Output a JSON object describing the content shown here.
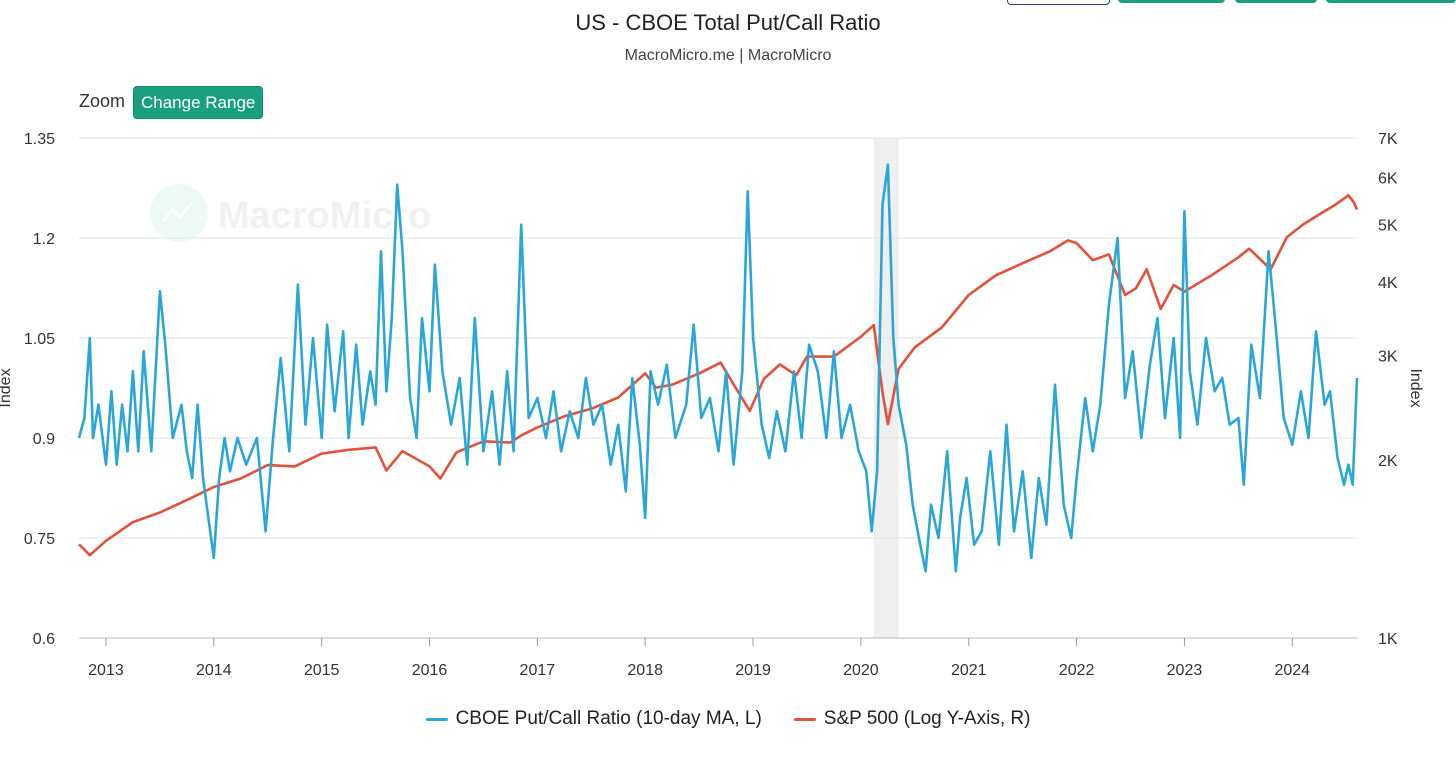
{
  "colors": {
    "putcall": "#2aa7d6",
    "sp500": "#e2513a",
    "accent": "#1aa07f",
    "recession": "#efefef",
    "grid": "#e3e3e3"
  },
  "header": {
    "title": "US - CBOE Total Put/Call Ratio",
    "subtitle": "MacroMicro.me | MacroMicro"
  },
  "toolbar": {
    "zoom_label": "Zoom",
    "change_range_label": "Change Range"
  },
  "watermark": {
    "text": "MacroMicro"
  },
  "chart_data": {
    "type": "line",
    "title": "US - CBOE Total Put/Call Ratio",
    "subtitle": "MacroMicro.me | MacroMicro",
    "xlim": [
      2012.75,
      2024.6
    ],
    "x_ticks": [
      "2013",
      "2014",
      "2015",
      "2016",
      "2017",
      "2018",
      "2019",
      "2020",
      "2021",
      "2022",
      "2023",
      "2024"
    ],
    "y_left": {
      "label": "Index",
      "lim": [
        0.6,
        1.35
      ],
      "ticks": [
        "0.6",
        "0.75",
        "0.9",
        "1.05",
        "1.2",
        "1.35"
      ]
    },
    "y_right": {
      "label": "Index",
      "scale": "log",
      "lim": [
        1000,
        7000
      ],
      "ticks": [
        "1K",
        "2K",
        "3K",
        "4K",
        "5K",
        "6K",
        "7K"
      ]
    },
    "grid": true,
    "legend_position": "bottom-center",
    "shaded_periods": [
      {
        "x0": 2020.12,
        "x1": 2020.35
      }
    ],
    "series": [
      {
        "name": "CBOE Put/Call Ratio (10-day MA, L)",
        "axis": "left",
        "points": [
          [
            2012.75,
            0.9
          ],
          [
            2012.8,
            0.93
          ],
          [
            2012.85,
            1.05
          ],
          [
            2012.88,
            0.9
          ],
          [
            2012.93,
            0.95
          ],
          [
            2013.0,
            0.86
          ],
          [
            2013.05,
            0.97
          ],
          [
            2013.1,
            0.86
          ],
          [
            2013.15,
            0.95
          ],
          [
            2013.2,
            0.88
          ],
          [
            2013.25,
            1.0
          ],
          [
            2013.3,
            0.88
          ],
          [
            2013.35,
            1.03
          ],
          [
            2013.42,
            0.88
          ],
          [
            2013.5,
            1.12
          ],
          [
            2013.55,
            1.04
          ],
          [
            2013.62,
            0.9
          ],
          [
            2013.7,
            0.95
          ],
          [
            2013.75,
            0.88
          ],
          [
            2013.8,
            0.84
          ],
          [
            2013.85,
            0.95
          ],
          [
            2013.9,
            0.84
          ],
          [
            2014.0,
            0.72
          ],
          [
            2014.05,
            0.84
          ],
          [
            2014.1,
            0.9
          ],
          [
            2014.15,
            0.85
          ],
          [
            2014.22,
            0.9
          ],
          [
            2014.3,
            0.86
          ],
          [
            2014.4,
            0.9
          ],
          [
            2014.48,
            0.76
          ],
          [
            2014.55,
            0.9
          ],
          [
            2014.62,
            1.02
          ],
          [
            2014.7,
            0.88
          ],
          [
            2014.78,
            1.13
          ],
          [
            2014.85,
            0.92
          ],
          [
            2014.92,
            1.05
          ],
          [
            2015.0,
            0.9
          ],
          [
            2015.05,
            1.07
          ],
          [
            2015.12,
            0.94
          ],
          [
            2015.2,
            1.06
          ],
          [
            2015.25,
            0.9
          ],
          [
            2015.32,
            1.04
          ],
          [
            2015.38,
            0.92
          ],
          [
            2015.45,
            1.0
          ],
          [
            2015.5,
            0.95
          ],
          [
            2015.55,
            1.18
          ],
          [
            2015.6,
            0.97
          ],
          [
            2015.65,
            1.08
          ],
          [
            2015.7,
            1.28
          ],
          [
            2015.75,
            1.18
          ],
          [
            2015.82,
            0.96
          ],
          [
            2015.88,
            0.9
          ],
          [
            2015.93,
            1.08
          ],
          [
            2016.0,
            0.97
          ],
          [
            2016.05,
            1.16
          ],
          [
            2016.12,
            1.0
          ],
          [
            2016.2,
            0.92
          ],
          [
            2016.28,
            0.99
          ],
          [
            2016.35,
            0.86
          ],
          [
            2016.42,
            1.08
          ],
          [
            2016.5,
            0.88
          ],
          [
            2016.58,
            0.97
          ],
          [
            2016.65,
            0.86
          ],
          [
            2016.72,
            1.0
          ],
          [
            2016.78,
            0.88
          ],
          [
            2016.85,
            1.22
          ],
          [
            2016.92,
            0.93
          ],
          [
            2017.0,
            0.96
          ],
          [
            2017.08,
            0.9
          ],
          [
            2017.15,
            0.97
          ],
          [
            2017.22,
            0.88
          ],
          [
            2017.3,
            0.94
          ],
          [
            2017.38,
            0.9
          ],
          [
            2017.45,
            0.99
          ],
          [
            2017.52,
            0.92
          ],
          [
            2017.6,
            0.95
          ],
          [
            2017.68,
            0.86
          ],
          [
            2017.75,
            0.92
          ],
          [
            2017.82,
            0.82
          ],
          [
            2017.88,
            0.99
          ],
          [
            2017.95,
            0.89
          ],
          [
            2018.0,
            0.78
          ],
          [
            2018.05,
            1.0
          ],
          [
            2018.12,
            0.95
          ],
          [
            2018.2,
            1.01
          ],
          [
            2018.28,
            0.9
          ],
          [
            2018.38,
            0.95
          ],
          [
            2018.45,
            1.07
          ],
          [
            2018.52,
            0.93
          ],
          [
            2018.6,
            0.96
          ],
          [
            2018.68,
            0.88
          ],
          [
            2018.75,
            1.0
          ],
          [
            2018.82,
            0.86
          ],
          [
            2018.9,
            1.0
          ],
          [
            2018.95,
            1.27
          ],
          [
            2019.0,
            1.05
          ],
          [
            2019.08,
            0.92
          ],
          [
            2019.15,
            0.87
          ],
          [
            2019.22,
            0.94
          ],
          [
            2019.3,
            0.88
          ],
          [
            2019.38,
            1.0
          ],
          [
            2019.45,
            0.9
          ],
          [
            2019.52,
            1.04
          ],
          [
            2019.6,
            1.0
          ],
          [
            2019.68,
            0.9
          ],
          [
            2019.75,
            1.03
          ],
          [
            2019.82,
            0.9
          ],
          [
            2019.9,
            0.95
          ],
          [
            2019.98,
            0.88
          ],
          [
            2020.05,
            0.85
          ],
          [
            2020.1,
            0.76
          ],
          [
            2020.15,
            0.85
          ],
          [
            2020.2,
            1.25
          ],
          [
            2020.25,
            1.31
          ],
          [
            2020.3,
            1.05
          ],
          [
            2020.35,
            0.95
          ],
          [
            2020.42,
            0.89
          ],
          [
            2020.48,
            0.8
          ],
          [
            2020.55,
            0.74
          ],
          [
            2020.6,
            0.7
          ],
          [
            2020.65,
            0.8
          ],
          [
            2020.72,
            0.75
          ],
          [
            2020.8,
            0.88
          ],
          [
            2020.88,
            0.7
          ],
          [
            2020.92,
            0.78
          ],
          [
            2020.98,
            0.84
          ],
          [
            2021.05,
            0.74
          ],
          [
            2021.12,
            0.76
          ],
          [
            2021.2,
            0.88
          ],
          [
            2021.28,
            0.74
          ],
          [
            2021.35,
            0.92
          ],
          [
            2021.42,
            0.76
          ],
          [
            2021.5,
            0.85
          ],
          [
            2021.58,
            0.72
          ],
          [
            2021.65,
            0.84
          ],
          [
            2021.72,
            0.77
          ],
          [
            2021.8,
            0.98
          ],
          [
            2021.88,
            0.8
          ],
          [
            2021.95,
            0.75
          ],
          [
            2022.0,
            0.84
          ],
          [
            2022.08,
            0.96
          ],
          [
            2022.15,
            0.88
          ],
          [
            2022.22,
            0.95
          ],
          [
            2022.3,
            1.1
          ],
          [
            2022.38,
            1.2
          ],
          [
            2022.45,
            0.96
          ],
          [
            2022.52,
            1.03
          ],
          [
            2022.6,
            0.9
          ],
          [
            2022.68,
            1.01
          ],
          [
            2022.75,
            1.08
          ],
          [
            2022.82,
            0.93
          ],
          [
            2022.9,
            1.05
          ],
          [
            2022.96,
            0.9
          ],
          [
            2023.0,
            1.24
          ],
          [
            2023.05,
            1.0
          ],
          [
            2023.12,
            0.92
          ],
          [
            2023.2,
            1.05
          ],
          [
            2023.28,
            0.97
          ],
          [
            2023.35,
            0.99
          ],
          [
            2023.42,
            0.92
          ],
          [
            2023.5,
            0.93
          ],
          [
            2023.55,
            0.83
          ],
          [
            2023.62,
            1.04
          ],
          [
            2023.7,
            0.96
          ],
          [
            2023.78,
            1.18
          ],
          [
            2023.85,
            1.06
          ],
          [
            2023.92,
            0.93
          ],
          [
            2024.0,
            0.89
          ],
          [
            2024.08,
            0.97
          ],
          [
            2024.15,
            0.9
          ],
          [
            2024.22,
            1.06
          ],
          [
            2024.3,
            0.95
          ],
          [
            2024.35,
            0.97
          ],
          [
            2024.42,
            0.87
          ],
          [
            2024.48,
            0.83
          ],
          [
            2024.52,
            0.86
          ],
          [
            2024.56,
            0.83
          ],
          [
            2024.6,
            0.99
          ]
        ]
      },
      {
        "name": "S&P 500 (Log Y-Axis, R)",
        "axis": "right",
        "points": [
          [
            2012.75,
            1440
          ],
          [
            2012.85,
            1380
          ],
          [
            2013.0,
            1460
          ],
          [
            2013.25,
            1570
          ],
          [
            2013.5,
            1630
          ],
          [
            2013.75,
            1710
          ],
          [
            2014.0,
            1800
          ],
          [
            2014.25,
            1860
          ],
          [
            2014.5,
            1960
          ],
          [
            2014.75,
            1950
          ],
          [
            2015.0,
            2050
          ],
          [
            2015.25,
            2080
          ],
          [
            2015.5,
            2100
          ],
          [
            2015.6,
            1920
          ],
          [
            2015.75,
            2070
          ],
          [
            2016.0,
            1950
          ],
          [
            2016.1,
            1860
          ],
          [
            2016.25,
            2060
          ],
          [
            2016.5,
            2150
          ],
          [
            2016.75,
            2140
          ],
          [
            2016.85,
            2200
          ],
          [
            2017.0,
            2270
          ],
          [
            2017.25,
            2370
          ],
          [
            2017.5,
            2440
          ],
          [
            2017.75,
            2550
          ],
          [
            2018.0,
            2800
          ],
          [
            2018.1,
            2650
          ],
          [
            2018.25,
            2680
          ],
          [
            2018.5,
            2800
          ],
          [
            2018.7,
            2920
          ],
          [
            2018.8,
            2720
          ],
          [
            2018.97,
            2420
          ],
          [
            2019.1,
            2740
          ],
          [
            2019.25,
            2900
          ],
          [
            2019.4,
            2780
          ],
          [
            2019.5,
            2990
          ],
          [
            2019.75,
            2990
          ],
          [
            2020.0,
            3230
          ],
          [
            2020.12,
            3380
          ],
          [
            2020.2,
            2600
          ],
          [
            2020.25,
            2300
          ],
          [
            2020.35,
            2850
          ],
          [
            2020.5,
            3100
          ],
          [
            2020.75,
            3350
          ],
          [
            2021.0,
            3800
          ],
          [
            2021.25,
            4100
          ],
          [
            2021.5,
            4300
          ],
          [
            2021.75,
            4500
          ],
          [
            2021.92,
            4700
          ],
          [
            2022.0,
            4650
          ],
          [
            2022.15,
            4350
          ],
          [
            2022.3,
            4450
          ],
          [
            2022.45,
            3800
          ],
          [
            2022.55,
            3900
          ],
          [
            2022.65,
            4200
          ],
          [
            2022.78,
            3600
          ],
          [
            2022.9,
            3950
          ],
          [
            2023.0,
            3850
          ],
          [
            2023.15,
            4000
          ],
          [
            2023.25,
            4100
          ],
          [
            2023.5,
            4400
          ],
          [
            2023.6,
            4550
          ],
          [
            2023.8,
            4200
          ],
          [
            2023.95,
            4760
          ],
          [
            2024.1,
            5000
          ],
          [
            2024.25,
            5200
          ],
          [
            2024.4,
            5400
          ],
          [
            2024.52,
            5600
          ],
          [
            2024.57,
            5450
          ],
          [
            2024.6,
            5300
          ]
        ]
      }
    ]
  }
}
